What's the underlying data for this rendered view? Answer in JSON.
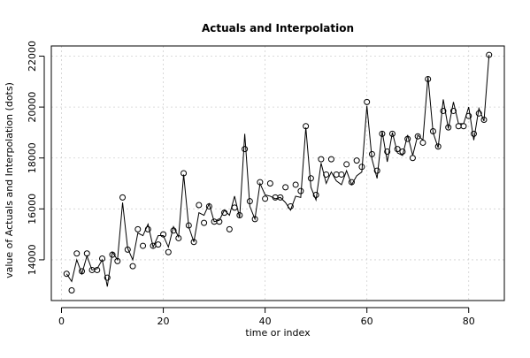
{
  "chart_data": {
    "type": "line",
    "title": "Actuals and Interpolation",
    "xlabel": "time or index",
    "ylabel": "value of Actuals and Interpolation (dots)",
    "xlim": [
      -2,
      87
    ],
    "ylim": [
      12400,
      22400
    ],
    "xticks": [
      0,
      20,
      40,
      60,
      80
    ],
    "yticks": [
      14000,
      16000,
      18000,
      20000,
      22000
    ],
    "grid": true,
    "legend": "none",
    "colors": {
      "line": "#000000",
      "points": "#000000",
      "grid": "#d0d0d0"
    },
    "series": [
      {
        "kind": "points",
        "x": [
          1,
          2,
          3,
          4,
          5,
          6,
          7,
          8,
          9,
          10,
          11,
          12,
          13,
          14,
          15,
          16,
          17,
          18,
          19,
          20,
          21,
          22,
          23,
          24,
          25,
          26,
          27,
          28,
          29,
          30,
          31,
          32,
          33,
          34,
          35,
          36,
          37,
          38,
          39,
          40,
          41,
          42,
          43,
          44,
          45,
          46,
          47,
          48,
          49,
          50,
          51,
          52,
          53,
          54,
          55,
          56,
          57,
          58,
          59,
          60,
          61,
          62,
          63,
          64,
          65,
          66,
          67,
          68,
          69,
          70,
          71,
          72,
          73,
          74,
          75,
          76,
          77,
          78,
          79,
          80,
          81,
          82,
          83,
          84
        ],
        "y": [
          13450,
          12800,
          14250,
          13550,
          14250,
          13600,
          13600,
          14050,
          13300,
          14200,
          13950,
          16450,
          14400,
          13750,
          15200,
          14550,
          15200,
          14550,
          14600,
          15000,
          14300,
          15150,
          14850,
          17400,
          15350,
          14700,
          16150,
          15450,
          16100,
          15500,
          15500,
          15850,
          15200,
          16050,
          15750,
          18350,
          16300,
          15600,
          17050,
          16400,
          17000,
          16450,
          16450,
          16850,
          16100,
          16950,
          16700,
          19250,
          17200,
          16550,
          17950,
          17350,
          17950,
          17350,
          17350,
          17750,
          17050,
          17900,
          17650,
          20200,
          18150,
          17500,
          18950,
          18250,
          18950,
          18350,
          18250,
          18750,
          18000,
          18850,
          18600,
          21100,
          19050,
          18450,
          19850,
          19200,
          19850,
          19250,
          19250,
          19650,
          18950,
          19750,
          19500,
          22050
        ]
      },
      {
        "kind": "line",
        "x": [
          1,
          2,
          3,
          4,
          5,
          6,
          7,
          8,
          9,
          10,
          11,
          12,
          13,
          14,
          15,
          16,
          17,
          18,
          19,
          20,
          21,
          22,
          23,
          24,
          25,
          26,
          27,
          28,
          29,
          30,
          31,
          32,
          33,
          34,
          35,
          36,
          37,
          38,
          39,
          40,
          41,
          42,
          43,
          44,
          45,
          46,
          47,
          48,
          49,
          50,
          51,
          52,
          53,
          54,
          55,
          56,
          57,
          58,
          59,
          60,
          61,
          62,
          63,
          64,
          65,
          66,
          67,
          68,
          69,
          70,
          71,
          72,
          73,
          74,
          75,
          76,
          77,
          78,
          79,
          80,
          81,
          82,
          83,
          84
        ],
        "y": [
          13450,
          13150,
          14000,
          13450,
          14150,
          13600,
          13650,
          14000,
          12950,
          14300,
          14000,
          16250,
          14450,
          14000,
          15050,
          14950,
          15400,
          14500,
          14950,
          14950,
          14500,
          15300,
          14900,
          17350,
          15300,
          14700,
          15850,
          15750,
          16200,
          15500,
          15550,
          15950,
          15750,
          16500,
          15650,
          18950,
          16100,
          15600,
          17000,
          16550,
          16500,
          16400,
          16450,
          16250,
          15950,
          16500,
          16450,
          19200,
          16850,
          16350,
          17800,
          17000,
          17450,
          17100,
          16950,
          17500,
          16950,
          17300,
          17450,
          20050,
          17950,
          17200,
          19050,
          17850,
          19000,
          18200,
          18100,
          18900,
          18100,
          18900,
          18700,
          21200,
          19000,
          18400,
          20300,
          19150,
          20200,
          19350,
          19350,
          20000,
          18700,
          19950,
          19450,
          22050
        ]
      }
    ]
  }
}
